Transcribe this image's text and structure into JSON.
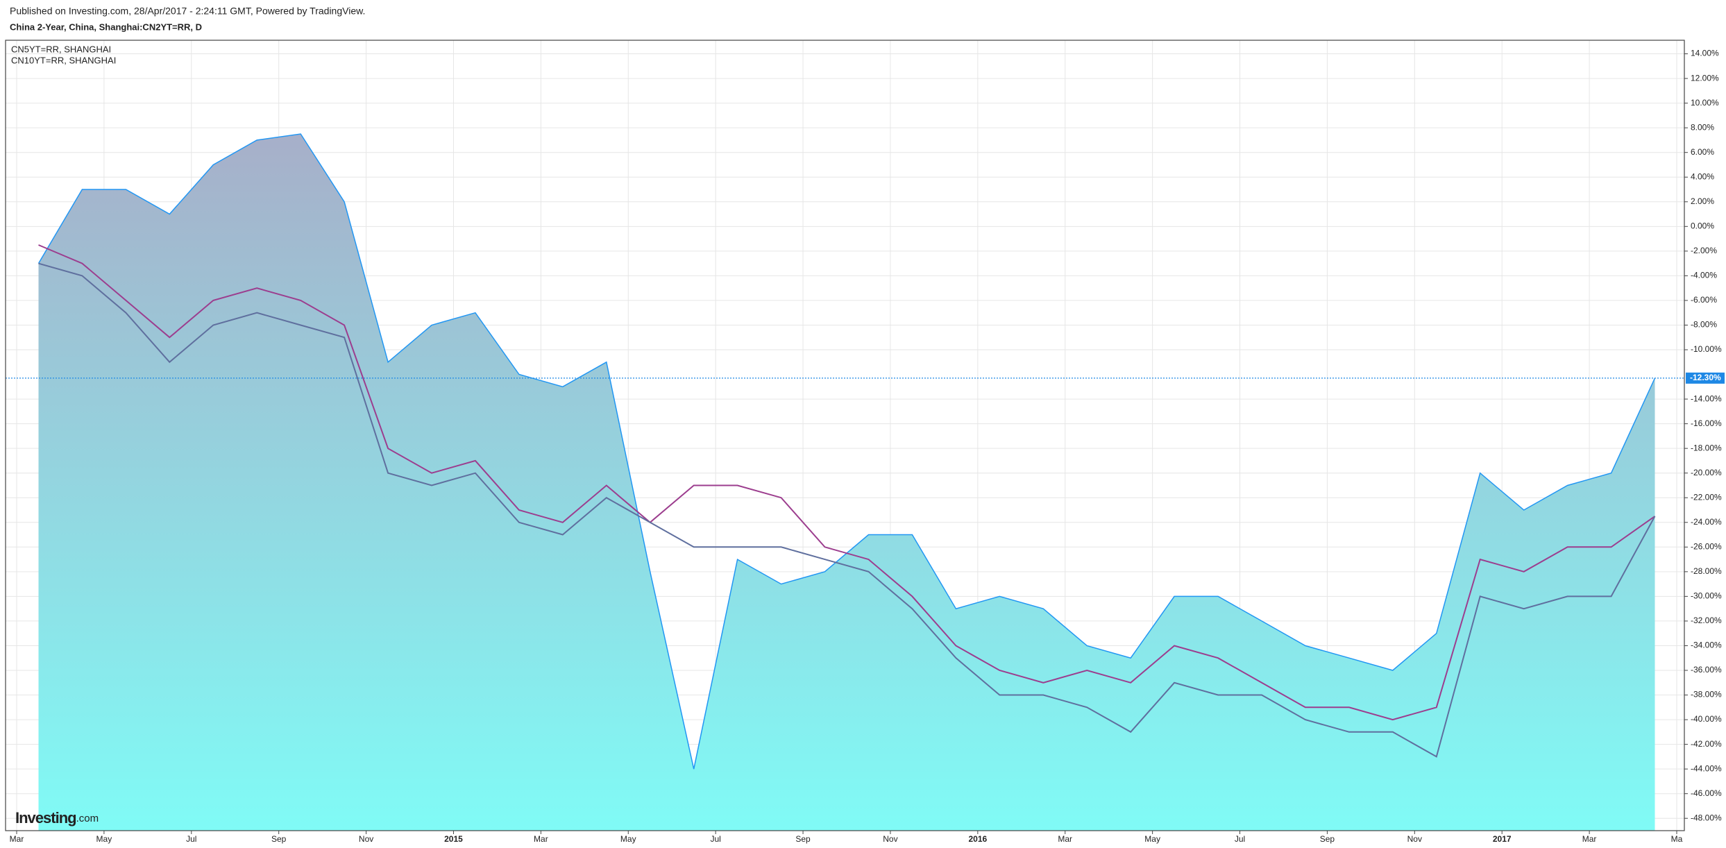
{
  "header": {
    "published": "Published on Investing.com, 28/Apr/2017 - 2:24:11 GMT, Powered by TradingView.",
    "symbol": "China 2-Year, China, Shanghai:CN2YT=RR, D"
  },
  "logo": {
    "brand": "Investing",
    "suffix": ".com"
  },
  "chart_data": {
    "type": "line",
    "x": [
      "2014-03",
      "2014-04",
      "2014-05",
      "2014-06",
      "2014-07",
      "2014-08",
      "2014-09",
      "2014-10",
      "2014-11",
      "2014-12",
      "2015-01",
      "2015-02",
      "2015-03",
      "2015-04",
      "2015-05",
      "2015-06",
      "2015-07",
      "2015-08",
      "2015-09",
      "2015-10",
      "2015-11",
      "2015-12",
      "2016-01",
      "2016-02",
      "2016-03",
      "2016-04",
      "2016-05",
      "2016-06",
      "2016-07",
      "2016-08",
      "2016-09",
      "2016-10",
      "2016-11",
      "2016-12",
      "2017-01",
      "2017-02",
      "2017-03",
      "2017-04"
    ],
    "series": [
      {
        "color": "#2196f3",
        "area": true,
        "values": [
          -3,
          3,
          3,
          1,
          5,
          7,
          7.5,
          2,
          -11,
          -8,
          -7,
          -12,
          -13,
          -11,
          -28,
          -44,
          -27,
          -29,
          -28,
          -25,
          -25,
          -31,
          -30,
          -31,
          -34,
          -35,
          -30,
          -30,
          -32,
          -34,
          -35,
          -36,
          -33,
          -20,
          -23,
          -21,
          -20,
          -12.3
        ]
      },
      {
        "name": "CN5YT=RR, SHANGHAI",
        "color": "#9c3d8e",
        "values": [
          -1.5,
          -3,
          -6,
          -9,
          -6,
          -5,
          -6,
          -8,
          -18,
          -20,
          -19,
          -23,
          -24,
          -21,
          -24,
          -21,
          -21,
          -22,
          -26,
          -27,
          -30,
          -34,
          -36,
          -37,
          -36,
          -37,
          -34,
          -35,
          -37,
          -39,
          -39,
          -40,
          -39,
          -27,
          -28,
          -26,
          -26,
          -23.5
        ]
      },
      {
        "name": "CN10YT=RR, SHANGHAI",
        "color": "#5f6f9e",
        "values": [
          -3,
          -4,
          -7,
          -11,
          -8,
          -7,
          -8,
          -9,
          -20,
          -21,
          -20,
          -24,
          -25,
          -22,
          -24,
          -26,
          -26,
          -26,
          -27,
          -28,
          -31,
          -35,
          -38,
          -38,
          -39,
          -41,
          -37,
          -38,
          -38,
          -40,
          -41,
          -41,
          -43,
          -30,
          -31,
          -30,
          -30,
          -23.5
        ]
      }
    ],
    "xlim": [
      "2014-03",
      "2017-05"
    ],
    "xticks": [
      {
        "value": "2014-03",
        "label": "Mar"
      },
      {
        "value": "2014-05",
        "label": "May"
      },
      {
        "value": "2014-07",
        "label": "Jul"
      },
      {
        "value": "2014-09",
        "label": "Sep"
      },
      {
        "value": "2014-11",
        "label": "Nov"
      },
      {
        "value": "2015-01",
        "label": "2015"
      },
      {
        "value": "2015-03",
        "label": "Mar"
      },
      {
        "value": "2015-05",
        "label": "May"
      },
      {
        "value": "2015-07",
        "label": "Jul"
      },
      {
        "value": "2015-09",
        "label": "Sep"
      },
      {
        "value": "2015-11",
        "label": "Nov"
      },
      {
        "value": "2016-01",
        "label": "2016"
      },
      {
        "value": "2016-03",
        "label": "Mar"
      },
      {
        "value": "2016-05",
        "label": "May"
      },
      {
        "value": "2016-07",
        "label": "Jul"
      },
      {
        "value": "2016-09",
        "label": "Sep"
      },
      {
        "value": "2016-11",
        "label": "Nov"
      },
      {
        "value": "2017-01",
        "label": "2017"
      },
      {
        "value": "2017-03",
        "label": "Mar"
      },
      {
        "value": "2017-05",
        "label": "Ma"
      }
    ],
    "ylim": [
      -49,
      15.1
    ],
    "yticks": [
      {
        "value": 14,
        "label": "14.00%"
      },
      {
        "value": 12,
        "label": "12.00%"
      },
      {
        "value": 10,
        "label": "10.00%"
      },
      {
        "value": 8,
        "label": "8.00%"
      },
      {
        "value": 6,
        "label": "6.00%"
      },
      {
        "value": 4,
        "label": "4.00%"
      },
      {
        "value": 2,
        "label": "2.00%"
      },
      {
        "value": 0,
        "label": "0.00%"
      },
      {
        "value": -2,
        "label": "-2.00%"
      },
      {
        "value": -4,
        "label": "-4.00%"
      },
      {
        "value": -6,
        "label": "-6.00%"
      },
      {
        "value": -8,
        "label": "-8.00%"
      },
      {
        "value": -10,
        "label": "-10.00%"
      },
      {
        "value": -14,
        "label": "-14.00%"
      },
      {
        "value": -16,
        "label": "-16.00%"
      },
      {
        "value": -18,
        "label": "-18.00%"
      },
      {
        "value": -20,
        "label": "-20.00%"
      },
      {
        "value": -22,
        "label": "-22.00%"
      },
      {
        "value": -24,
        "label": "-24.00%"
      },
      {
        "value": -26,
        "label": "-26.00%"
      },
      {
        "value": -28,
        "label": "-28.00%"
      },
      {
        "value": -30,
        "label": "-30.00%"
      },
      {
        "value": -32,
        "label": "-32.00%"
      },
      {
        "value": -34,
        "label": "-34.00%"
      },
      {
        "value": -36,
        "label": "-36.00%"
      },
      {
        "value": -38,
        "label": "-38.00%"
      },
      {
        "value": -40,
        "label": "-40.00%"
      },
      {
        "value": -42,
        "label": "-42.00%"
      },
      {
        "value": -44,
        "label": "-44.00%"
      },
      {
        "value": -46,
        "label": "-46.00%"
      },
      {
        "value": -48,
        "label": "-48.00%"
      }
    ],
    "last_value": {
      "value": -12.3,
      "label": "-12.30%",
      "color": "#1e88e5"
    },
    "grid": true
  }
}
